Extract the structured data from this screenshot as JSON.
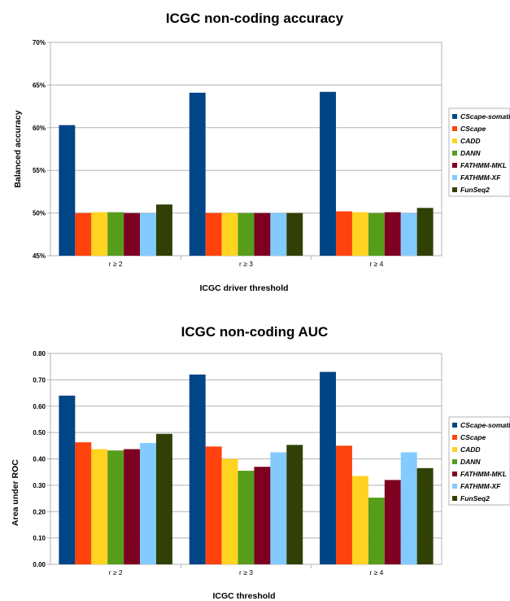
{
  "chart_data": [
    {
      "type": "bar",
      "title": "ICGC non-coding accuracy",
      "xlabel": "ICGC driver threshold",
      "ylabel": "Balanced accuracy",
      "ylim": [
        45,
        70
      ],
      "yticks": [
        "45%",
        "50%",
        "55%",
        "60%",
        "65%",
        "70%"
      ],
      "categories": [
        "r ≥ 2",
        "r ≥ 3",
        "r ≥ 4"
      ],
      "grid": true,
      "legend_position": "right",
      "series": [
        {
          "name": "CScape-somatic",
          "color": "#004586",
          "values": [
            60.3,
            64.1,
            64.2
          ]
        },
        {
          "name": "CScape",
          "color": "#ff420e",
          "values": [
            50.0,
            50.0,
            50.2
          ]
        },
        {
          "name": "CADD",
          "color": "#ffd320",
          "values": [
            50.1,
            50.0,
            50.1
          ]
        },
        {
          "name": "DANN",
          "color": "#579d1c",
          "values": [
            50.1,
            50.0,
            50.0
          ]
        },
        {
          "name": "FATHMM-MKL",
          "color": "#7e0021",
          "values": [
            50.0,
            50.0,
            50.1
          ]
        },
        {
          "name": "FATHMM-XF",
          "color": "#83caff",
          "values": [
            50.0,
            50.0,
            50.0
          ]
        },
        {
          "name": "FunSeq2",
          "color": "#314004",
          "values": [
            51.0,
            50.0,
            50.6
          ]
        }
      ]
    },
    {
      "type": "bar",
      "title": "ICGC non-coding AUC",
      "xlabel": "ICGC threshold",
      "ylabel": "Area under ROC",
      "ylim": [
        0,
        0.8
      ],
      "yticks": [
        "0.00",
        "0.10",
        "0.20",
        "0.30",
        "0.40",
        "0.50",
        "0.60",
        "0.70",
        "0.80"
      ],
      "categories": [
        "r ≥ 2",
        "r ≥ 3",
        "r ≥ 4"
      ],
      "grid": true,
      "legend_position": "right",
      "series": [
        {
          "name": "CScape-somatic",
          "color": "#004586",
          "values": [
            0.64,
            0.72,
            0.73
          ]
        },
        {
          "name": "CScape",
          "color": "#ff420e",
          "values": [
            0.463,
            0.447,
            0.45
          ]
        },
        {
          "name": "CADD",
          "color": "#ffd320",
          "values": [
            0.437,
            0.4,
            0.335
          ]
        },
        {
          "name": "DANN",
          "color": "#579d1c",
          "values": [
            0.432,
            0.355,
            0.253
          ]
        },
        {
          "name": "FATHMM-MKL",
          "color": "#7e0021",
          "values": [
            0.437,
            0.37,
            0.32
          ]
        },
        {
          "name": "FATHMM-XF",
          "color": "#83caff",
          "values": [
            0.46,
            0.425,
            0.425
          ]
        },
        {
          "name": "FunSeq2",
          "color": "#314004",
          "values": [
            0.495,
            0.453,
            0.365
          ]
        }
      ]
    }
  ]
}
